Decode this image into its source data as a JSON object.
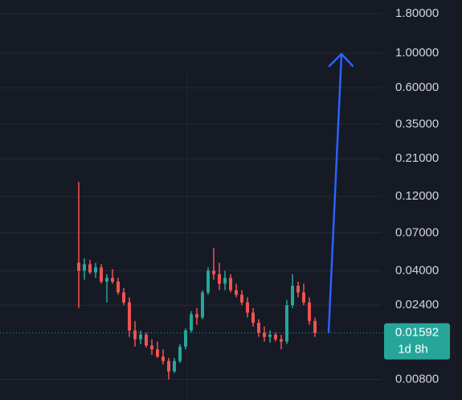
{
  "chart_data": {
    "type": "candlestick",
    "log_scale": true,
    "grid": true,
    "up_color": "#26a69a",
    "down_color": "#ef5350",
    "ylim": [
      0.0059,
      2.2
    ],
    "yticks": [
      {
        "value": 1.8,
        "label": "1.80000"
      },
      {
        "value": 1.0,
        "label": "1.00000"
      },
      {
        "value": 0.6,
        "label": "0.60000"
      },
      {
        "value": 0.35,
        "label": "0.35000"
      },
      {
        "value": 0.21,
        "label": "0.21000"
      },
      {
        "value": 0.12,
        "label": "0.12000"
      },
      {
        "value": 0.07,
        "label": "0.07000"
      },
      {
        "value": 0.04,
        "label": "0.04000"
      },
      {
        "value": 0.024,
        "label": "0.02400"
      },
      {
        "value": 0.008,
        "label": "0.00800"
      }
    ],
    "open": [
      0.045,
      0.04,
      0.044,
      0.039,
      0.042,
      0.034,
      0.036,
      0.034,
      0.029,
      0.025,
      0.0165,
      0.0145,
      0.0155,
      0.0132,
      0.0125,
      0.0112,
      0.0105,
      0.009,
      0.0105,
      0.013,
      0.0165,
      0.021,
      0.02,
      0.029,
      0.04,
      0.038,
      0.033,
      0.036,
      0.03,
      0.028,
      0.025,
      0.0215,
      0.0185,
      0.016,
      0.015,
      0.0155,
      0.0145,
      0.014,
      0.024,
      0.032,
      0.029,
      0.025,
      0.019
    ],
    "high": [
      0.149,
      0.048,
      0.047,
      0.045,
      0.044,
      0.038,
      0.041,
      0.036,
      0.031,
      0.027,
      0.019,
      0.0165,
      0.016,
      0.0145,
      0.014,
      0.0125,
      0.011,
      0.011,
      0.0135,
      0.017,
      0.022,
      0.023,
      0.03,
      0.042,
      0.056,
      0.045,
      0.04,
      0.038,
      0.033,
      0.03,
      0.027,
      0.023,
      0.0195,
      0.0175,
      0.0165,
      0.016,
      0.0155,
      0.026,
      0.038,
      0.034,
      0.033,
      0.027,
      0.02
    ],
    "low": [
      0.023,
      0.035,
      0.038,
      0.036,
      0.033,
      0.025,
      0.033,
      0.028,
      0.024,
      0.015,
      0.013,
      0.0135,
      0.0128,
      0.0115,
      0.011,
      0.01,
      0.008,
      0.0088,
      0.0102,
      0.0125,
      0.016,
      0.018,
      0.0195,
      0.028,
      0.035,
      0.03,
      0.03,
      0.029,
      0.027,
      0.024,
      0.02,
      0.0175,
      0.015,
      0.014,
      0.0138,
      0.014,
      0.0125,
      0.0135,
      0.023,
      0.027,
      0.024,
      0.018,
      0.015
    ],
    "close": [
      0.04,
      0.044,
      0.039,
      0.042,
      0.034,
      0.036,
      0.034,
      0.029,
      0.025,
      0.0165,
      0.0145,
      0.0155,
      0.0132,
      0.0125,
      0.0112,
      0.0105,
      0.009,
      0.0105,
      0.013,
      0.0165,
      0.021,
      0.02,
      0.029,
      0.04,
      0.038,
      0.033,
      0.036,
      0.03,
      0.028,
      0.025,
      0.0215,
      0.0185,
      0.016,
      0.015,
      0.0155,
      0.0145,
      0.014,
      0.024,
      0.032,
      0.029,
      0.025,
      0.019,
      0.0159
    ],
    "last_price": 0.01592,
    "countdown": "1d 8h"
  }
}
